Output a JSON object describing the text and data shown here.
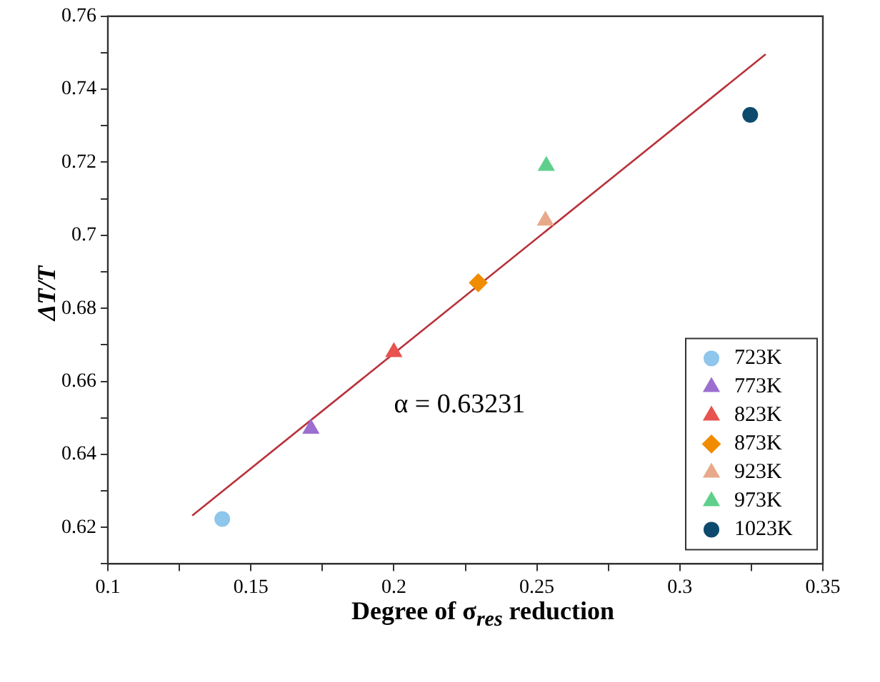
{
  "chart_data": {
    "type": "scatter",
    "xlabel": "Degree of σ$_{res}$ reduction",
    "ylabel": "ΔT/T",
    "xlim": [
      0.1,
      0.35
    ],
    "xticks": [
      0.1,
      {
        "value": 0.125,
        "label": null
      },
      0.15,
      {
        "value": 0.175,
        "label": null
      },
      0.2,
      {
        "value": 0.225,
        "label": null
      },
      0.25,
      {
        "value": 0.275,
        "label": null
      },
      0.3,
      {
        "value": 0.325,
        "label": null
      },
      0.35
    ],
    "ylim": [
      0.61,
      0.76
    ],
    "yticks": [
      {
        "value": 0.61,
        "label": null
      },
      0.62,
      {
        "value": 0.63,
        "label": null
      },
      0.64,
      {
        "value": 0.65,
        "label": null
      },
      0.66,
      {
        "value": 0.67,
        "label": null
      },
      0.68,
      {
        "value": 0.69,
        "label": null
      },
      {
        "value": 0.7,
        "label": "0.7"
      },
      {
        "value": 0.71,
        "label": null
      },
      0.72,
      {
        "value": 0.73,
        "label": null
      },
      0.74,
      {
        "value": 0.75,
        "label": null
      },
      0.76
    ],
    "legend": "bottom right",
    "annotations": [
      "α = 0.63231"
    ],
    "series": [
      {
        "name": "723K",
        "color": "#8ec6ec",
        "marker": "circle",
        "x": [
          0.14
        ],
        "values": [
          0.6223
        ]
      },
      {
        "name": "773K",
        "color": "#9b6fcf",
        "marker": "triangle",
        "x": [
          0.171
        ],
        "values": [
          0.647
        ]
      },
      {
        "name": "823K",
        "color": "#e8534f",
        "marker": "triangle",
        "x": [
          0.2
        ],
        "values": [
          0.668
        ]
      },
      {
        "name": "873K",
        "color": "#f08c00",
        "marker": "diamond",
        "x": [
          0.2295
        ],
        "values": [
          0.687
        ]
      },
      {
        "name": "923K",
        "color": "#e8a98a",
        "marker": "triangle",
        "x": [
          0.253
        ],
        "values": [
          0.704
        ]
      },
      {
        "name": "973K",
        "color": "#5fd08c",
        "marker": "triangle",
        "x": [
          0.2533
        ],
        "values": [
          0.719
        ]
      },
      {
        "name": "1023K",
        "color": "#0e4a6e",
        "marker": "circle",
        "x": [
          0.3246
        ],
        "values": [
          0.733
        ]
      },
      {
        "type": "line",
        "color": "#b8323a",
        "marker": "none",
        "x": [
          0.1295,
          0.33
        ],
        "values": [
          0.6232,
          0.7496
        ]
      }
    ]
  }
}
